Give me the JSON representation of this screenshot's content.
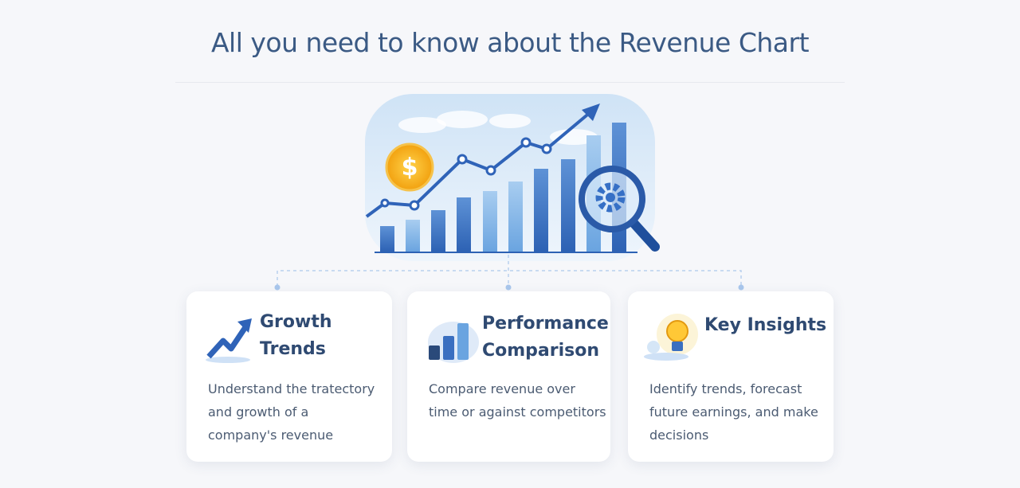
{
  "header": {
    "title": "All you need to know about the Revenue Chart"
  },
  "cards": [
    {
      "title": "Growth Trends",
      "description": "Understand the tratectory and growth of a company's revenue"
    },
    {
      "title": "Performance Comparison",
      "description": "Compare revenue over time or against competitors"
    },
    {
      "title": "Key Insights",
      "description": "Identify trends, forecast future earnings, and make decisions"
    }
  ]
}
